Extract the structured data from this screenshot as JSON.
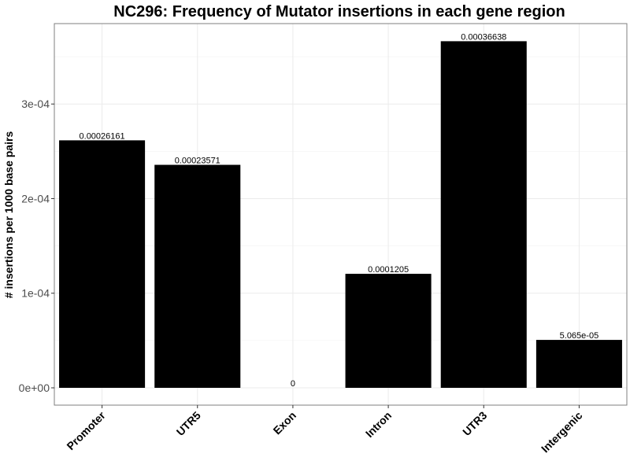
{
  "chart_data": {
    "type": "bar",
    "title": "NC296: Frequency of Mutator insertions in each gene region",
    "xlabel": "",
    "ylabel": "# insertions per 1000 base pairs",
    "categories": [
      "Promoter",
      "UTR5",
      "Exon",
      "Intron",
      "UTR3",
      "Intergenic"
    ],
    "values": [
      0.00026161,
      0.00023571,
      0,
      0.0001205,
      0.00036638,
      5.065e-05
    ],
    "data_labels": [
      "0.00026161",
      "0.00023571",
      "0",
      "0.0001205",
      "0.00036638",
      "5.065e-05"
    ],
    "yticks": [
      0,
      0.0001,
      0.0002,
      0.0003
    ],
    "ytick_labels": [
      "0e+00",
      "1e-04",
      "2e-04",
      "3e-04"
    ],
    "ylim": [
      -1.83e-05,
      0.000385
    ],
    "grid": true,
    "bar_color": "#000000"
  }
}
